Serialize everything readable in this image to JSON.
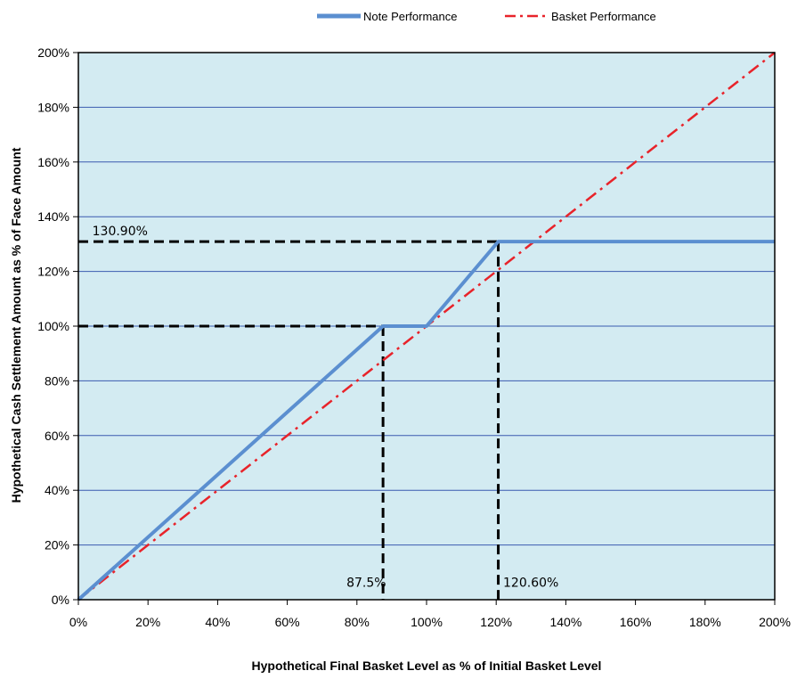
{
  "chart_data": {
    "type": "line",
    "title": "",
    "xlabel": "Hypothetical Final Basket Level as % of Initial Basket Level",
    "ylabel": "Hypothetical Cash Settlement Amount as % of Face Amount",
    "xlim": [
      0,
      200
    ],
    "ylim": [
      0,
      200
    ],
    "x_ticks": [
      "0%",
      "20%",
      "40%",
      "60%",
      "80%",
      "100%",
      "120%",
      "140%",
      "160%",
      "180%",
      "200%"
    ],
    "y_ticks": [
      "0%",
      "20%",
      "40%",
      "60%",
      "80%",
      "100%",
      "120%",
      "140%",
      "160%",
      "180%",
      "200%"
    ],
    "grid": "horizontal",
    "legend_position": "top",
    "plot_background": "#d3ebf2",
    "series": [
      {
        "name": "Note Performance",
        "color": "#5b8fd0",
        "style": "solid",
        "x": [
          0,
          87.5,
          100,
          120.6,
          200
        ],
        "y": [
          0,
          100,
          100,
          130.9,
          130.9
        ]
      },
      {
        "name": "Basket Performance",
        "color": "#e8232a",
        "style": "dash-dot",
        "x": [
          0,
          200
        ],
        "y": [
          0,
          200
        ]
      }
    ],
    "reference_lines": [
      {
        "from": [
          0,
          130.9
        ],
        "to": [
          120.6,
          130.9
        ]
      },
      {
        "from": [
          0,
          100
        ],
        "to": [
          87.5,
          100
        ]
      },
      {
        "from": [
          87.5,
          100
        ],
        "to": [
          87.5,
          0
        ]
      },
      {
        "from": [
          120.6,
          130.9
        ],
        "to": [
          120.6,
          0
        ]
      }
    ],
    "annotations": [
      {
        "text": "130.90%",
        "x": 4,
        "y": 132.5
      },
      {
        "text": "87.5%",
        "x": 77,
        "y": 4
      },
      {
        "text": "120.60%",
        "x": 122,
        "y": 4
      }
    ]
  }
}
